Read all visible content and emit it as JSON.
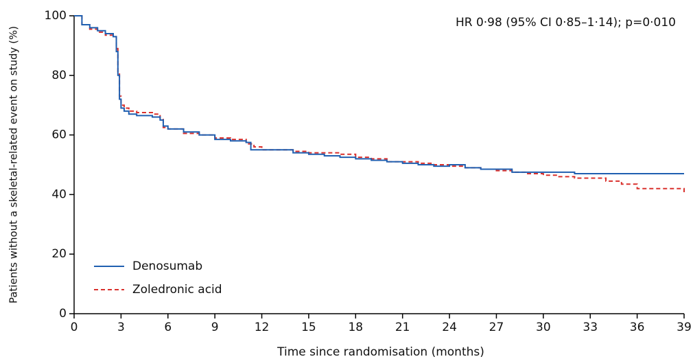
{
  "chart_data": {
    "type": "step",
    "annotation": "HR 0·98 (95% CI 0·85–1·14); p=0·010",
    "x_label": "Time since randomisation (months)",
    "y_label": "Patients without a skeletal-related event on study (%)",
    "xlim": [
      0,
      39
    ],
    "xticks": [
      0,
      3,
      6,
      9,
      12,
      15,
      18,
      21,
      24,
      27,
      30,
      33,
      36,
      39
    ],
    "ylim": [
      0,
      100
    ],
    "yticks": [
      0,
      20,
      40,
      60,
      80,
      100
    ],
    "series": [
      {
        "name": "Denosumab",
        "color": "#1f5fb0",
        "dash": false,
        "x": [
          0,
          0.5,
          1,
          1.5,
          2,
          2.5,
          2.7,
          2.8,
          2.9,
          3,
          3.2,
          3.5,
          4,
          5,
          5.5,
          5.7,
          6,
          7,
          8,
          9,
          10,
          11,
          11.3,
          12,
          13,
          14,
          15,
          16,
          17,
          18,
          19,
          20,
          21,
          22,
          23,
          24,
          25,
          26,
          28,
          30,
          32,
          39
        ],
        "values": [
          100,
          97,
          96,
          95,
          94,
          93,
          88,
          80,
          72,
          69,
          68,
          67,
          66.5,
          66,
          65,
          63,
          62,
          61,
          60,
          58.5,
          58,
          57.5,
          55,
          55,
          55,
          54,
          53.5,
          53,
          52.5,
          52,
          51.5,
          51,
          50.5,
          50,
          49.5,
          50,
          49,
          48.5,
          47.5,
          47.5,
          47,
          47
        ]
      },
      {
        "name": "Zoledronic acid",
        "color": "#d9302c",
        "dash": true,
        "x": [
          0,
          0.5,
          1,
          1.5,
          2,
          2.5,
          2.7,
          2.8,
          2.9,
          3,
          3.2,
          3.5,
          4,
          5,
          5.5,
          5.7,
          6,
          7,
          8,
          9,
          10,
          11,
          11.5,
          12,
          13,
          14,
          15,
          16,
          17,
          18,
          19,
          20,
          21,
          22,
          23,
          24,
          25,
          26,
          27,
          28,
          29,
          30,
          31,
          32,
          33,
          34,
          35,
          36,
          38,
          39
        ],
        "values": [
          100,
          97,
          95.5,
          94.5,
          93.5,
          93,
          89,
          81,
          73,
          70,
          69,
          68,
          67.5,
          67,
          65.5,
          62.5,
          62,
          60.5,
          60,
          59,
          58.5,
          57,
          56,
          55,
          55,
          54.5,
          54,
          54,
          53.5,
          52.5,
          52,
          51,
          51,
          50.5,
          50,
          49.5,
          49,
          48.5,
          48,
          47.5,
          47,
          46.5,
          46,
          45.5,
          45.5,
          44.5,
          43.5,
          42,
          42,
          40
        ]
      }
    ]
  }
}
